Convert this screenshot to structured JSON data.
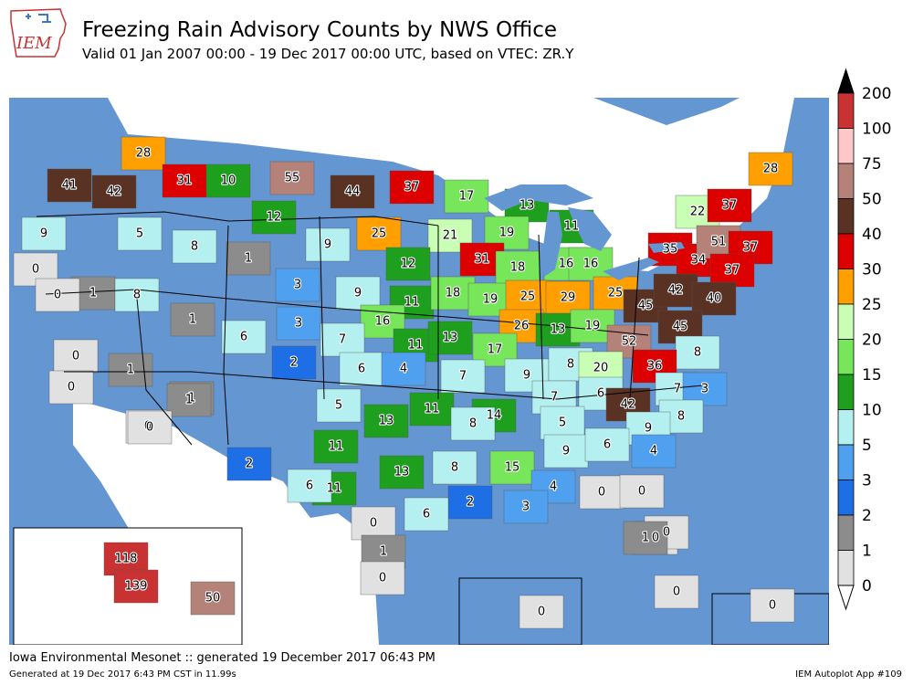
{
  "header": {
    "logo_text": "IEM",
    "title": "Freezing Rain Advisory Counts by NWS Office",
    "subtitle": "Valid 01 Jan 2007 00:00 - 19 Dec 2017 00:00 UTC, based on VTEC: ZR.Y"
  },
  "colorbar": {
    "labels": [
      "200",
      "100",
      "75",
      "50",
      "40",
      "30",
      "25",
      "20",
      "15",
      "10",
      "5",
      "3",
      "2",
      "1",
      "0"
    ],
    "colors": [
      "#000000",
      "#c83232",
      "#ffc8c8",
      "#b48278",
      "#5a3223",
      "#dc0000",
      "#ffa000",
      "#c8ffb4",
      "#78e65a",
      "#1ea01e",
      "#b4f0f0",
      "#50a0f0",
      "#1e6ee6",
      "#8c8c8c",
      "#e1e1e1"
    ],
    "cap_top_color": "#000000",
    "cap_bottom_color": "#ffffff"
  },
  "map": {
    "ocean_color": "#6496d2",
    "land_color": "#ffffff",
    "lake_color": "#6496d2",
    "office_labels": [
      {
        "value": "28"
      },
      {
        "value": "41"
      },
      {
        "value": "42"
      },
      {
        "value": "31"
      },
      {
        "value": "10"
      },
      {
        "value": "55"
      },
      {
        "value": "44"
      },
      {
        "value": "37"
      },
      {
        "value": "17"
      },
      {
        "value": "13"
      },
      {
        "value": "11"
      },
      {
        "value": "28"
      },
      {
        "value": "22"
      },
      {
        "value": "37"
      },
      {
        "value": "9"
      },
      {
        "value": "5"
      },
      {
        "value": "8"
      },
      {
        "value": "12"
      },
      {
        "value": "9"
      },
      {
        "value": "25"
      },
      {
        "value": "21"
      },
      {
        "value": "19"
      },
      {
        "value": "31"
      },
      {
        "value": "18"
      },
      {
        "value": "16"
      },
      {
        "value": "16"
      },
      {
        "value": "35"
      },
      {
        "value": "34"
      },
      {
        "value": "51"
      },
      {
        "value": "37"
      },
      {
        "value": "1"
      },
      {
        "value": "0"
      },
      {
        "value": "1"
      },
      {
        "value": "8"
      },
      {
        "value": "3"
      },
      {
        "value": "9"
      },
      {
        "value": "12"
      },
      {
        "value": "11"
      },
      {
        "value": "18"
      },
      {
        "value": "19"
      },
      {
        "value": "25"
      },
      {
        "value": "29"
      },
      {
        "value": "25"
      },
      {
        "value": "45"
      },
      {
        "value": "42"
      },
      {
        "value": "37"
      },
      {
        "value": "40"
      },
      {
        "value": "0"
      },
      {
        "value": "1"
      },
      {
        "value": "3"
      },
      {
        "value": "16"
      },
      {
        "value": "26"
      },
      {
        "value": "13"
      },
      {
        "value": "19"
      },
      {
        "value": "52"
      },
      {
        "value": "45"
      },
      {
        "value": "0"
      },
      {
        "value": "6"
      },
      {
        "value": "7"
      },
      {
        "value": "11"
      },
      {
        "value": "13"
      },
      {
        "value": "17"
      },
      {
        "value": "8"
      },
      {
        "value": "1"
      },
      {
        "value": "2"
      },
      {
        "value": "6"
      },
      {
        "value": "4"
      },
      {
        "value": "7"
      },
      {
        "value": "9"
      },
      {
        "value": "8"
      },
      {
        "value": "20"
      },
      {
        "value": "36"
      },
      {
        "value": "0"
      },
      {
        "value": "1"
      },
      {
        "value": "5"
      },
      {
        "value": "7"
      },
      {
        "value": "6"
      },
      {
        "value": "42"
      },
      {
        "value": "7"
      },
      {
        "value": "3"
      },
      {
        "value": "0"
      },
      {
        "value": "1"
      },
      {
        "value": "13"
      },
      {
        "value": "11"
      },
      {
        "value": "14"
      },
      {
        "value": "5"
      },
      {
        "value": "8"
      },
      {
        "value": "9"
      },
      {
        "value": "8"
      },
      {
        "value": "0"
      },
      {
        "value": "11"
      },
      {
        "value": "9"
      },
      {
        "value": "6"
      },
      {
        "value": "4"
      },
      {
        "value": "2"
      },
      {
        "value": "11"
      },
      {
        "value": "13"
      },
      {
        "value": "8"
      },
      {
        "value": "15"
      },
      {
        "value": "4"
      },
      {
        "value": "0"
      },
      {
        "value": "0"
      },
      {
        "value": "6"
      },
      {
        "value": "2"
      },
      {
        "value": "3"
      },
      {
        "value": "0"
      },
      {
        "value": "6"
      },
      {
        "value": "0"
      },
      {
        "value": "1"
      },
      {
        "value": "0"
      },
      {
        "value": "1"
      },
      {
        "value": "0"
      },
      {
        "value": "0"
      },
      {
        "value": "118"
      },
      {
        "value": "139"
      },
      {
        "value": "50"
      },
      {
        "value": "0"
      },
      {
        "value": "0"
      }
    ]
  },
  "footer": {
    "left": "Iowa Environmental Mesonet :: generated 19 December 2017 06:43 PM",
    "generated": "Generated at 19 Dec 2017 6:43 PM CST in 11.99s",
    "right": "IEM Autoplot App #109"
  }
}
